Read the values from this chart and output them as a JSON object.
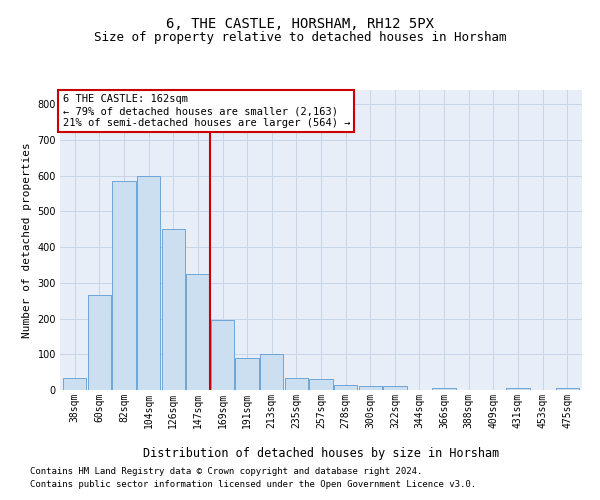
{
  "title": "6, THE CASTLE, HORSHAM, RH12 5PX",
  "subtitle": "Size of property relative to detached houses in Horsham",
  "xlabel": "Distribution of detached houses by size in Horsham",
  "ylabel": "Number of detached properties",
  "categories": [
    "38sqm",
    "60sqm",
    "82sqm",
    "104sqm",
    "126sqm",
    "147sqm",
    "169sqm",
    "191sqm",
    "213sqm",
    "235sqm",
    "257sqm",
    "278sqm",
    "300sqm",
    "322sqm",
    "344sqm",
    "366sqm",
    "388sqm",
    "409sqm",
    "431sqm",
    "453sqm",
    "475sqm"
  ],
  "values": [
    35,
    265,
    585,
    600,
    450,
    325,
    195,
    90,
    100,
    35,
    30,
    15,
    12,
    10,
    0,
    5,
    0,
    0,
    5,
    0,
    5
  ],
  "bar_color": "#ccdff0",
  "bar_edge_color": "#5b9bd5",
  "red_line_index": 5,
  "red_line_color": "#cc0000",
  "annotation_line1": "6 THE CASTLE: 162sqm",
  "annotation_line2": "← 79% of detached houses are smaller (2,163)",
  "annotation_line3": "21% of semi-detached houses are larger (564) →",
  "annotation_box_color": "#ffffff",
  "annotation_box_edge": "#cc0000",
  "ylim": [
    0,
    840
  ],
  "yticks": [
    0,
    100,
    200,
    300,
    400,
    500,
    600,
    700,
    800
  ],
  "footer_line1": "Contains HM Land Registry data © Crown copyright and database right 2024.",
  "footer_line2": "Contains public sector information licensed under the Open Government Licence v3.0.",
  "bg_color": "#ffffff",
  "plot_bg_color": "#e8eef7",
  "grid_color": "#c8d4e8",
  "title_fontsize": 10,
  "subtitle_fontsize": 9,
  "tick_fontsize": 7,
  "ylabel_fontsize": 8,
  "xlabel_fontsize": 8.5,
  "annotation_fontsize": 7.5,
  "footer_fontsize": 6.5
}
